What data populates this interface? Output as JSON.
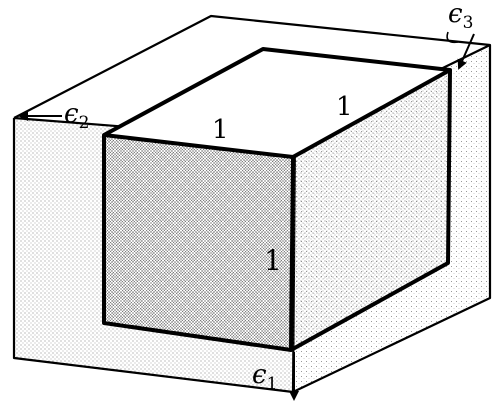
{
  "figure": {
    "edge_labels": {
      "top_left": "1",
      "top_right": "1",
      "front_right": "1"
    },
    "axis_labels": {
      "e1": {
        "symbol": "ϵ",
        "subscript": "1"
      },
      "e2": {
        "symbol": "ϵ",
        "subscript": "2"
      },
      "e3": {
        "symbol": "ϵ",
        "subscript": "3"
      }
    },
    "colors": {
      "ink": "#000000",
      "paper": "#ffffff",
      "stipple": "#777777"
    }
  }
}
